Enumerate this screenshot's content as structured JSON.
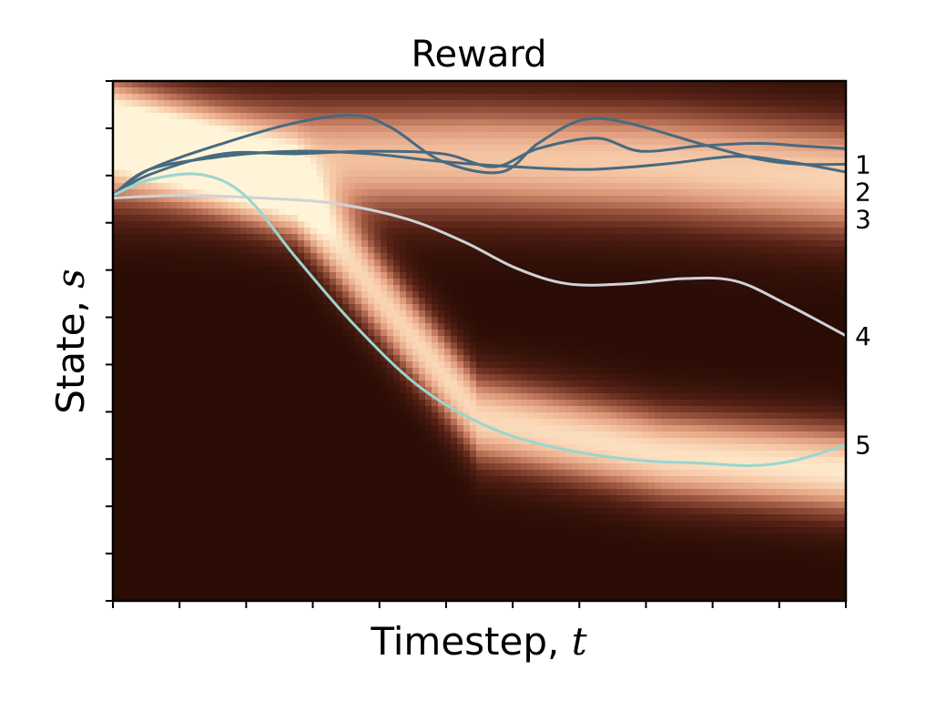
{
  "chart_data": {
    "type": "heatmap",
    "title": "Reward",
    "xlabel_text": "Timestep, ",
    "xlabel_var": "t",
    "ylabel_text": "State, ",
    "ylabel_var": "s",
    "heatmap": {
      "colormap": "dark-brown to pale-cream",
      "colors": [
        "#2a0c05",
        "#5a2417",
        "#9c5640",
        "#dc9678",
        "#f6c8a6",
        "#fff4d8"
      ],
      "bands": [
        {
          "center": [
            0.08,
            0.22,
            0.65,
            0.72,
            0.75
          ],
          "width": 0.085,
          "amp": 0.95
        },
        {
          "center": [
            0.14,
            0.15,
            0.15,
            0.16,
            0.19
          ],
          "width": 0.11,
          "amp": 0.85
        }
      ]
    },
    "x_ticks": 12,
    "y_ticks": 12,
    "series": [
      {
        "label": "1",
        "color": "#476a80",
        "points": [
          [
            0,
            0.22
          ],
          [
            0.05,
            0.17
          ],
          [
            0.15,
            0.12
          ],
          [
            0.25,
            0.08
          ],
          [
            0.33,
            0.066
          ],
          [
            0.38,
            0.09
          ],
          [
            0.45,
            0.155
          ],
          [
            0.53,
            0.175
          ],
          [
            0.58,
            0.12
          ],
          [
            0.64,
            0.075
          ],
          [
            0.7,
            0.08
          ],
          [
            0.8,
            0.12
          ],
          [
            0.88,
            0.15
          ],
          [
            0.94,
            0.16
          ],
          [
            1.0,
            0.16
          ]
        ]
      },
      {
        "label": "2",
        "color": "#476a80",
        "points": [
          [
            0,
            0.22
          ],
          [
            0.05,
            0.18
          ],
          [
            0.15,
            0.14
          ],
          [
            0.25,
            0.14
          ],
          [
            0.35,
            0.135
          ],
          [
            0.45,
            0.14
          ],
          [
            0.52,
            0.165
          ],
          [
            0.58,
            0.13
          ],
          [
            0.66,
            0.11
          ],
          [
            0.72,
            0.135
          ],
          [
            0.8,
            0.125
          ],
          [
            0.88,
            0.12
          ],
          [
            0.94,
            0.125
          ],
          [
            1.0,
            0.13
          ]
        ]
      },
      {
        "label": "3",
        "color": "#476a80",
        "points": [
          [
            0,
            0.22
          ],
          [
            0.05,
            0.17
          ],
          [
            0.15,
            0.145
          ],
          [
            0.25,
            0.135
          ],
          [
            0.35,
            0.14
          ],
          [
            0.45,
            0.155
          ],
          [
            0.55,
            0.165
          ],
          [
            0.65,
            0.17
          ],
          [
            0.75,
            0.16
          ],
          [
            0.85,
            0.145
          ],
          [
            0.92,
            0.155
          ],
          [
            1.0,
            0.175
          ]
        ]
      },
      {
        "label": "4",
        "color": "#cfd3d6",
        "points": [
          [
            0,
            0.225
          ],
          [
            0.1,
            0.22
          ],
          [
            0.2,
            0.225
          ],
          [
            0.3,
            0.235
          ],
          [
            0.4,
            0.265
          ],
          [
            0.48,
            0.31
          ],
          [
            0.55,
            0.36
          ],
          [
            0.62,
            0.39
          ],
          [
            0.7,
            0.39
          ],
          [
            0.78,
            0.38
          ],
          [
            0.85,
            0.385
          ],
          [
            0.92,
            0.43
          ],
          [
            1.0,
            0.49
          ]
        ]
      },
      {
        "label": "5",
        "color": "#9ad6cf",
        "points": [
          [
            0,
            0.22
          ],
          [
            0.05,
            0.19
          ],
          [
            0.12,
            0.18
          ],
          [
            0.18,
            0.22
          ],
          [
            0.25,
            0.34
          ],
          [
            0.33,
            0.47
          ],
          [
            0.42,
            0.59
          ],
          [
            0.52,
            0.67
          ],
          [
            0.62,
            0.71
          ],
          [
            0.72,
            0.73
          ],
          [
            0.8,
            0.735
          ],
          [
            0.87,
            0.74
          ],
          [
            0.93,
            0.73
          ],
          [
            1.0,
            0.7
          ]
        ]
      }
    ]
  }
}
